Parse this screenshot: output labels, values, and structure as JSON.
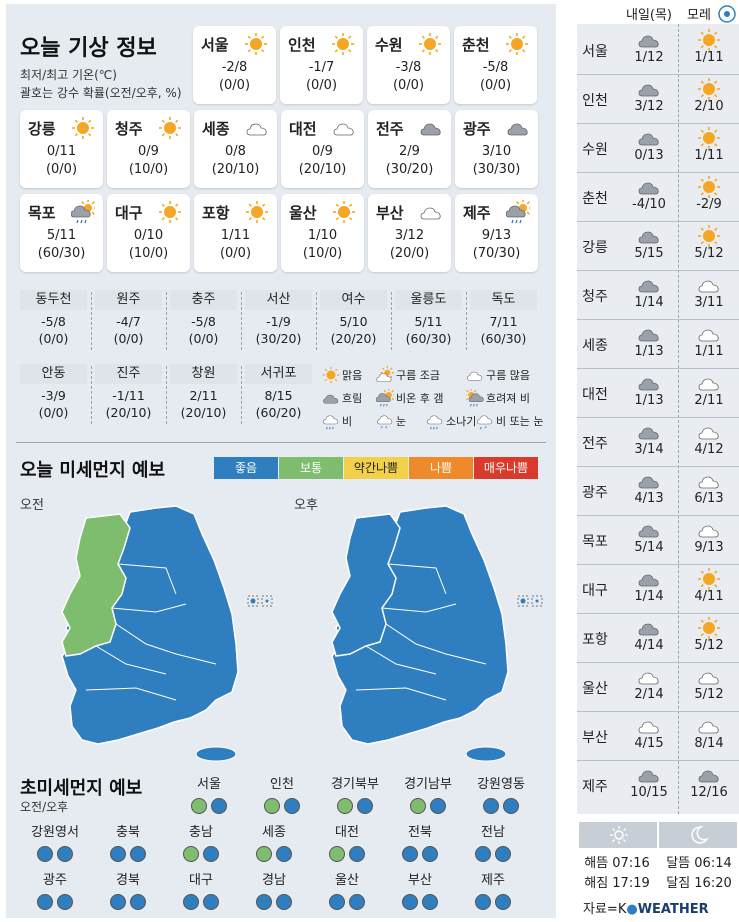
{
  "title": "오늘 기상 정보",
  "subtitle1": "최저/최고 기온(℃)",
  "subtitle2": "괄호는 강수 확률(오전/오후, %)",
  "cities": [
    {
      "name": "서울",
      "icon": "sun-icon",
      "temp": "-2/8",
      "prob": "(0/0)"
    },
    {
      "name": "인천",
      "icon": "sun-icon",
      "temp": "-1/7",
      "prob": "(0/0)"
    },
    {
      "name": "수원",
      "icon": "sun-icon",
      "temp": "-3/8",
      "prob": "(0/0)"
    },
    {
      "name": "춘천",
      "icon": "sun-icon",
      "temp": "-5/8",
      "prob": "(0/0)"
    },
    {
      "name": "강릉",
      "icon": "sun-icon",
      "temp": "0/11",
      "prob": "(0/0)"
    },
    {
      "name": "청주",
      "icon": "sun-icon",
      "temp": "0/9",
      "prob": "(10/0)"
    },
    {
      "name": "세종",
      "icon": "cloud-icon",
      "temp": "0/8",
      "prob": "(20/10)"
    },
    {
      "name": "대전",
      "icon": "cloud-icon",
      "temp": "0/9",
      "prob": "(20/10)"
    },
    {
      "name": "전주",
      "icon": "dark-cloud-icon",
      "temp": "2/9",
      "prob": "(30/20)"
    },
    {
      "name": "광주",
      "icon": "dark-cloud-icon",
      "temp": "3/10",
      "prob": "(30/30)"
    },
    {
      "name": "목포",
      "icon": "rain-then-clear-icon",
      "temp": "5/11",
      "prob": "(60/30)"
    },
    {
      "name": "대구",
      "icon": "sun-icon",
      "temp": "0/10",
      "prob": "(10/0)"
    },
    {
      "name": "포항",
      "icon": "sun-icon",
      "temp": "1/11",
      "prob": "(0/0)"
    },
    {
      "name": "울산",
      "icon": "sun-icon",
      "temp": "1/10",
      "prob": "(10/0)"
    },
    {
      "name": "부산",
      "icon": "cloud-icon",
      "temp": "3/12",
      "prob": "(20/0)"
    },
    {
      "name": "제주",
      "icon": "rain-then-clear-icon",
      "temp": "9/13",
      "prob": "(70/30)"
    }
  ],
  "small_cities": [
    {
      "name": "동두천",
      "temp": "-5/8",
      "prob": "(0/0)"
    },
    {
      "name": "원주",
      "temp": "-4/7",
      "prob": "(0/0)"
    },
    {
      "name": "충주",
      "temp": "-5/8",
      "prob": "(0/0)"
    },
    {
      "name": "서산",
      "temp": "-1/9",
      "prob": "(30/20)"
    },
    {
      "name": "여수",
      "temp": "5/10",
      "prob": "(20/20)"
    },
    {
      "name": "울릉도",
      "temp": "5/11",
      "prob": "(60/30)"
    },
    {
      "name": "독도",
      "temp": "7/11",
      "prob": "(60/30)"
    },
    {
      "name": "안동",
      "temp": "-3/9",
      "prob": "(0/0)"
    },
    {
      "name": "진주",
      "temp": "-1/11",
      "prob": "(20/10)"
    },
    {
      "name": "창원",
      "temp": "2/11",
      "prob": "(20/10)"
    },
    {
      "name": "서귀포",
      "temp": "8/15",
      "prob": "(60/20)"
    }
  ],
  "legend": [
    {
      "label": "맑음",
      "icon": "sun-icon"
    },
    {
      "label": "구름 조금",
      "icon": "partly-cloudy-icon"
    },
    {
      "label": "구름 많음",
      "icon": "cloud-icon"
    },
    {
      "label": "흐림",
      "icon": "dark-cloud-icon"
    },
    {
      "label": "비온 후 갬",
      "icon": "rain-then-clear-icon"
    },
    {
      "label": "흐려져 비",
      "icon": "clouding-rain-icon"
    },
    {
      "label": "비",
      "icon": "rain-icon"
    },
    {
      "label": "눈",
      "icon": "snow-icon"
    },
    {
      "label": "소나기",
      "icon": "shower-icon"
    },
    {
      "label": "비 또는 눈",
      "icon": "sleet-icon"
    }
  ],
  "dust_title": "오늘 미세먼지 예보",
  "levels": [
    {
      "label": "좋음",
      "color": "#2f7fc0",
      "text": "#ffffff"
    },
    {
      "label": "보통",
      "color": "#7fbd6e",
      "text": "#ffffff"
    },
    {
      "label": "약간나쁨",
      "color": "#f2d04a",
      "text": "#222222"
    },
    {
      "label": "나쁨",
      "color": "#ef8a2a",
      "text": "#ffffff"
    },
    {
      "label": "매우나쁨",
      "color": "#d83a2c",
      "text": "#ffffff"
    }
  ],
  "am_label": "오전",
  "pm_label": "오후",
  "ultra_title": "초미세먼지 예보",
  "ultra_sub": "오전/오후",
  "ultra_regions": [
    {
      "name": "서울",
      "am": "norm",
      "pm": "good"
    },
    {
      "name": "인천",
      "am": "norm",
      "pm": "good"
    },
    {
      "name": "경기북부",
      "am": "norm",
      "pm": "good"
    },
    {
      "name": "경기남부",
      "am": "norm",
      "pm": "good"
    },
    {
      "name": "강원영동",
      "am": "good",
      "pm": "good"
    },
    {
      "name": "강원영서",
      "am": "good",
      "pm": "good"
    },
    {
      "name": "충북",
      "am": "good",
      "pm": "good"
    },
    {
      "name": "충남",
      "am": "norm",
      "pm": "good"
    },
    {
      "name": "세종",
      "am": "norm",
      "pm": "good"
    },
    {
      "name": "대전",
      "am": "norm",
      "pm": "good"
    },
    {
      "name": "전북",
      "am": "good",
      "pm": "good"
    },
    {
      "name": "전남",
      "am": "good",
      "pm": "good"
    },
    {
      "name": "광주",
      "am": "good",
      "pm": "good"
    },
    {
      "name": "경북",
      "am": "good",
      "pm": "good"
    },
    {
      "name": "대구",
      "am": "good",
      "pm": "good"
    },
    {
      "name": "경남",
      "am": "good",
      "pm": "good"
    },
    {
      "name": "울산",
      "am": "good",
      "pm": "good"
    },
    {
      "name": "부산",
      "am": "good",
      "pm": "good"
    },
    {
      "name": "제주",
      "am": "good",
      "pm": "good"
    }
  ],
  "forecast": {
    "col1": "내일(목)",
    "col2": "모레",
    "rows": [
      {
        "name": "서울",
        "i1": "dark-cloud-icon",
        "v1": "1/12",
        "i2": "sun-icon",
        "v2": "1/11"
      },
      {
        "name": "인천",
        "i1": "dark-cloud-icon",
        "v1": "3/12",
        "i2": "sun-icon",
        "v2": "2/10"
      },
      {
        "name": "수원",
        "i1": "dark-cloud-icon",
        "v1": "0/13",
        "i2": "sun-icon",
        "v2": "1/11"
      },
      {
        "name": "춘천",
        "i1": "dark-cloud-icon",
        "v1": "-4/10",
        "i2": "sun-icon",
        "v2": "-2/9"
      },
      {
        "name": "강릉",
        "i1": "dark-cloud-icon",
        "v1": "5/15",
        "i2": "sun-icon",
        "v2": "5/12"
      },
      {
        "name": "청주",
        "i1": "dark-cloud-icon",
        "v1": "1/14",
        "i2": "cloud-icon",
        "v2": "3/11"
      },
      {
        "name": "세종",
        "i1": "dark-cloud-icon",
        "v1": "1/13",
        "i2": "cloud-icon",
        "v2": "1/11"
      },
      {
        "name": "대전",
        "i1": "dark-cloud-icon",
        "v1": "1/13",
        "i2": "cloud-icon",
        "v2": "2/11"
      },
      {
        "name": "전주",
        "i1": "dark-cloud-icon",
        "v1": "3/14",
        "i2": "cloud-icon",
        "v2": "4/12"
      },
      {
        "name": "광주",
        "i1": "dark-cloud-icon",
        "v1": "4/13",
        "i2": "cloud-icon",
        "v2": "6/13"
      },
      {
        "name": "목포",
        "i1": "dark-cloud-icon",
        "v1": "5/14",
        "i2": "cloud-icon",
        "v2": "9/13"
      },
      {
        "name": "대구",
        "i1": "dark-cloud-icon",
        "v1": "1/14",
        "i2": "sun-icon",
        "v2": "4/11"
      },
      {
        "name": "포항",
        "i1": "dark-cloud-icon",
        "v1": "4/14",
        "i2": "sun-icon",
        "v2": "5/12"
      },
      {
        "name": "울산",
        "i1": "cloud-icon",
        "v1": "2/14",
        "i2": "cloud-icon",
        "v2": "5/12"
      },
      {
        "name": "부산",
        "i1": "cloud-icon",
        "v1": "4/15",
        "i2": "cloud-icon",
        "v2": "8/14"
      },
      {
        "name": "제주",
        "i1": "dark-cloud-icon",
        "v1": "10/15",
        "i2": "dark-cloud-icon",
        "v2": "12/16"
      }
    ],
    "sunrise": "해뜸 07:16",
    "sunset": "해짐 17:19",
    "moonrise": "달뜸 06:14",
    "moonset": "달짐 16:20",
    "source": "자료=K",
    "source_brand": "WEATHER"
  }
}
